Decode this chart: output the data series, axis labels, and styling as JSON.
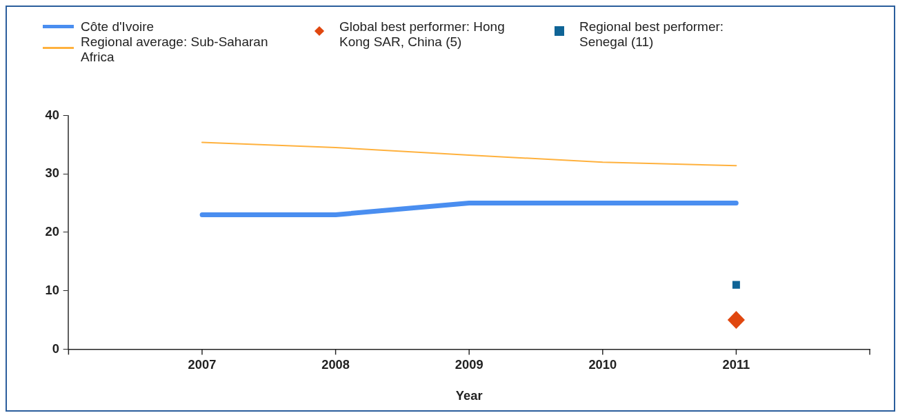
{
  "chart_data": {
    "type": "line",
    "xlabel": "Year",
    "x": [
      2007,
      2008,
      2009,
      2010,
      2011
    ],
    "xlim": [
      2006,
      2012
    ],
    "xticks": [
      {
        "value": 2006,
        "label": null
      },
      2007,
      2008,
      2009,
      2010,
      2011,
      {
        "value": 2012,
        "label": null
      }
    ],
    "ylim": [
      0,
      40
    ],
    "yticks": [
      0,
      10,
      20,
      30,
      40
    ],
    "grid": false,
    "legend": "top left",
    "marker": "none",
    "series": [
      {
        "name": "Côte d'Ivoire",
        "color": "#4a8ef0",
        "values": [
          23,
          23,
          25,
          25,
          25
        ]
      },
      {
        "name": "Regional average: Sub-Saharan Africa",
        "color": "#ffb13d",
        "values": [
          35.4,
          34.5,
          33.2,
          32.0,
          31.4
        ]
      },
      {
        "name": "Global best performer: Hong Kong SAR, China (5)",
        "type": "scatter",
        "marker": "diamond",
        "color": "#e0470f",
        "x": [
          2011
        ],
        "values": [
          5
        ]
      },
      {
        "name": "Regional best performer: Senegal (11)",
        "type": "scatter",
        "marker": "square",
        "color": "#0f6496",
        "x": [
          2011
        ],
        "values": [
          11
        ]
      }
    ]
  }
}
